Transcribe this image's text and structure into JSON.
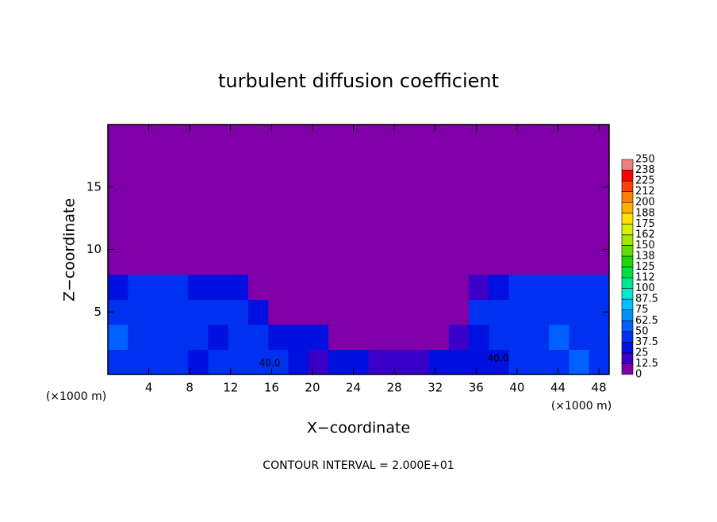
{
  "chart_data": {
    "type": "contour",
    "title": "turbulent diffusion coefficient",
    "xlabel": "X−coordinate",
    "ylabel": "Z−coordinate",
    "x_unit_left": "(×1000 m)",
    "x_unit_right": "(×1000 m)",
    "footer": "CONTOUR INTERVAL = 2.000E+01",
    "contour_labels": [
      "40.0",
      "40.0"
    ],
    "xlim": [
      0,
      49
    ],
    "ylim": [
      0,
      20
    ],
    "xticks": [
      4,
      8,
      12,
      16,
      20,
      24,
      28,
      32,
      36,
      40,
      44,
      48
    ],
    "yticks": [
      5,
      10,
      15
    ],
    "z": [
      [
        40,
        45,
        40,
        40,
        35,
        40,
        40,
        45,
        40,
        30,
        20,
        25,
        30,
        20,
        15,
        20,
        30,
        25,
        30,
        25,
        40,
        40,
        45,
        50,
        45
      ],
      [
        50,
        40,
        45,
        40,
        40,
        35,
        40,
        40,
        30,
        25,
        30,
        10,
        5,
        10,
        5,
        5,
        10,
        20,
        35,
        40,
        40,
        45,
        50,
        40,
        45
      ],
      [
        40,
        45,
        40,
        40,
        45,
        40,
        40,
        35,
        5,
        0,
        0,
        0,
        0,
        0,
        0,
        0,
        0,
        0,
        40,
        40,
        45,
        40,
        40,
        45,
        40
      ],
      [
        35,
        40,
        40,
        40,
        35,
        30,
        25,
        0,
        0,
        0,
        0,
        0,
        0,
        0,
        0,
        0,
        0,
        0,
        20,
        35,
        40,
        45,
        40,
        45,
        45
      ],
      [
        0,
        0,
        0,
        0,
        0,
        0,
        0,
        0,
        0,
        0,
        0,
        0,
        0,
        0,
        0,
        0,
        0,
        0,
        0,
        0,
        0,
        0,
        0,
        0,
        0
      ],
      [
        0,
        0,
        0,
        0,
        0,
        0,
        0,
        0,
        0,
        0,
        0,
        0,
        0,
        0,
        0,
        0,
        0,
        0,
        0,
        0,
        0,
        0,
        0,
        0,
        0
      ],
      [
        0,
        0,
        0,
        0,
        0,
        0,
        0,
        0,
        0,
        0,
        0,
        0,
        0,
        0,
        0,
        0,
        0,
        0,
        0,
        0,
        0,
        0,
        0,
        0,
        0
      ],
      [
        0,
        0,
        0,
        0,
        0,
        0,
        0,
        0,
        0,
        0,
        0,
        0,
        0,
        0,
        0,
        0,
        0,
        0,
        0,
        0,
        0,
        0,
        0,
        0,
        0
      ],
      [
        0,
        0,
        0,
        0,
        0,
        0,
        0,
        0,
        0,
        0,
        0,
        0,
        0,
        0,
        0,
        0,
        0,
        0,
        0,
        0,
        0,
        0,
        0,
        0,
        0
      ],
      [
        0,
        0,
        0,
        0,
        0,
        0,
        0,
        0,
        0,
        0,
        0,
        0,
        0,
        0,
        0,
        0,
        0,
        0,
        0,
        0,
        0,
        0,
        0,
        0,
        0
      ]
    ],
    "colorbar_lim": [
      0,
      250
    ],
    "colorbar_ticks": [
      0,
      12.5,
      25,
      37.5,
      50,
      62.5,
      75,
      87.5,
      100,
      {
        "value": 112.5,
        "label": "112"
      },
      125,
      {
        "value": 137.5,
        "label": "138"
      },
      150,
      {
        "value": 162.5,
        "label": "162"
      },
      175,
      {
        "value": 187.5,
        "label": "188"
      },
      200,
      {
        "value": 212.5,
        "label": "212"
      },
      225,
      {
        "value": 237.5,
        "label": "238"
      },
      250
    ],
    "colors": [
      "#7f00a8",
      "#3a00c8",
      "#0010e0",
      "#0030f0",
      "#0060ff",
      "#0090ff",
      "#00c0ff",
      "#00e8d0",
      "#00e890",
      "#00e040",
      "#20d800",
      "#60e000",
      "#a0e800",
      "#d8f000",
      "#ffe000",
      "#ffb000",
      "#ff8000",
      "#ff4000",
      "#ff0000",
      "#f08080"
    ]
  }
}
